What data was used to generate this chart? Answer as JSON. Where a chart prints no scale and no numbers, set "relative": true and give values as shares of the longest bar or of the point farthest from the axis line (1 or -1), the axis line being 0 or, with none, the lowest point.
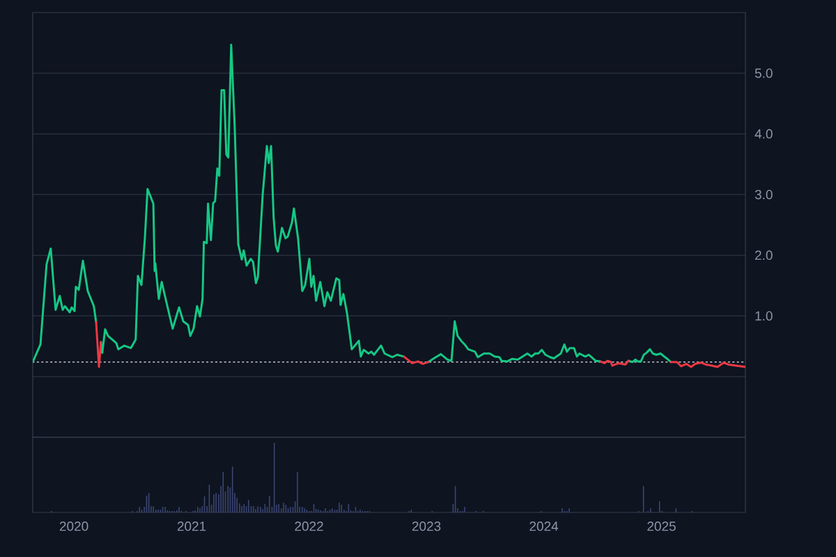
{
  "chart_data": [
    {
      "type": "line",
      "tick_labels": "y",
      "x": [
        "2019-08-26",
        "2019-09-19",
        "2019-10-08",
        "2019-10-21",
        "2019-11-05",
        "2019-11-18",
        "2019-11-27",
        "2019-12-04",
        "2019-12-19",
        "2019-12-25",
        "2020-01-03",
        "2020-01-07",
        "2020-01-16",
        "2020-01-29",
        "2020-02-13",
        "2020-03-03",
        "2020-03-10",
        "2020-03-19",
        "2020-03-25",
        "2020-03-29",
        "2020-04-07",
        "2020-04-16",
        "2020-05-12",
        "2020-05-18",
        "2020-06-05",
        "2020-06-26",
        "2020-07-11",
        "2020-07-18",
        "2020-07-29",
        "2020-08-09",
        "2020-08-17",
        "2020-09-04",
        "2020-09-08",
        "2020-09-10",
        "2020-09-21",
        "2020-09-30",
        "2020-10-10",
        "2020-11-03",
        "2020-11-23",
        "2020-12-06",
        "2020-12-21",
        "2020-12-28",
        "2021-01-07",
        "2021-01-18",
        "2021-01-27",
        "2021-02-04",
        "2021-02-08",
        "2021-02-17",
        "2021-02-21",
        "2021-03-02",
        "2021-03-09",
        "2021-03-15",
        "2021-03-22",
        "2021-03-28",
        "2021-04-04",
        "2021-04-12",
        "2021-04-19",
        "2021-04-25",
        "2021-05-04",
        "2021-05-15",
        "2021-05-26",
        "2021-06-06",
        "2021-06-12",
        "2021-06-21",
        "2021-07-04",
        "2021-07-11",
        "2021-07-20",
        "2021-07-26",
        "2021-08-10",
        "2021-08-23",
        "2021-08-29",
        "2021-09-05",
        "2021-09-13",
        "2021-09-20",
        "2021-09-26",
        "2021-10-09",
        "2021-10-20",
        "2021-10-27",
        "2021-11-09",
        "2021-11-15",
        "2021-11-28",
        "2021-12-11",
        "2021-12-20",
        "2022-01-02",
        "2022-01-08",
        "2022-01-15",
        "2022-01-23",
        "2022-02-05",
        "2022-02-18",
        "2022-02-27",
        "2022-03-10",
        "2022-03-27",
        "2022-04-05",
        "2022-04-09",
        "2022-04-18",
        "2022-04-29",
        "2022-05-14",
        "2022-06-05",
        "2022-06-11",
        "2022-06-20",
        "2022-07-05",
        "2022-07-14",
        "2022-07-22",
        "2022-08-13",
        "2022-08-24",
        "2022-09-17",
        "2022-10-02",
        "2022-10-23",
        "2022-11-18",
        "2022-12-06",
        "2022-12-21",
        "2023-01-07",
        "2023-01-24",
        "2023-02-15",
        "2023-03-07",
        "2023-03-20",
        "2023-03-30",
        "2023-04-08",
        "2023-04-19",
        "2023-04-30",
        "2023-05-11",
        "2023-06-01",
        "2023-06-10",
        "2023-06-29",
        "2023-07-17",
        "2023-08-01",
        "2023-08-16",
        "2023-08-23",
        "2023-09-09",
        "2023-09-24",
        "2023-10-12",
        "2023-11-11",
        "2023-11-24",
        "2023-12-05",
        "2023-12-15",
        "2023-12-26",
        "2024-01-06",
        "2024-01-21",
        "2024-02-01",
        "2024-02-23",
        "2024-03-05",
        "2024-03-13",
        "2024-03-22",
        "2024-04-04",
        "2024-04-13",
        "2024-04-21",
        "2024-05-09",
        "2024-05-20",
        "2024-06-10",
        "2024-06-25",
        "2024-07-08",
        "2024-07-17",
        "2024-07-28",
        "2024-08-01",
        "2024-08-21",
        "2024-09-11",
        "2024-09-20",
        "2024-10-03",
        "2024-10-12",
        "2024-10-18",
        "2024-10-29",
        "2024-11-07",
        "2024-11-15",
        "2024-11-26",
        "2024-12-05",
        "2024-12-16",
        "2024-12-29",
        "2025-01-17",
        "2025-01-30"
      ],
      "series": [
        {
          "color": "#16c784",
          "values": [
            0.24,
            0.53,
            1.85,
            2.11,
            1.1,
            1.33,
            1.1,
            1.16,
            1.06,
            1.14,
            1.08,
            1.48,
            1.43,
            1.91,
            1.41,
            1.16,
            0.9,
            null,
            0.57,
            0.39,
            0.78,
            0.67,
            0.55,
            0.45,
            0.51,
            0.47,
            0.61,
            1.66,
            1.51,
            2.31,
            3.09,
            2.85,
            1.74,
            1.87,
            1.28,
            1.56,
            1.33,
            0.79,
            1.14,
            0.91,
            0.85,
            0.67,
            0.79,
            1.16,
            0.99,
            1.28,
            2.22,
            2.2,
            2.85,
            2.25,
            2.86,
            2.89,
            3.43,
            3.31,
            4.72,
            4.72,
            3.66,
            3.61,
            5.47,
            4.11,
            2.18,
            1.93,
            2.08,
            1.83,
            1.94,
            1.89,
            1.54,
            1.64,
            3.0,
            3.8,
            3.52,
            3.8,
            2.62,
            2.16,
            2.06,
            2.45,
            2.28,
            2.31,
            2.54,
            2.77,
            2.28,
            1.41,
            1.51,
            1.94,
            1.48,
            1.66,
            1.25,
            1.56,
            1.16,
            1.39,
            1.25,
            1.62,
            1.59,
            1.18,
            1.36,
            1.05,
            0.45,
            0.59,
            0.33,
            0.44,
            0.38,
            0.41,
            0.36,
            0.51,
            0.38,
            0.32,
            0.36,
            0.33,
            null,
            null,
            null,
            0.24,
            0.3,
            0.37,
            0.28,
            0.26,
            0.91,
            0.67,
            0.59,
            0.53,
            0.45,
            0.41,
            0.32,
            0.38,
            0.38,
            0.33,
            0.32,
            0.26,
            0.25,
            0.29,
            0.28,
            0.38,
            0.33,
            0.38,
            0.38,
            0.44,
            0.36,
            0.32,
            0.3,
            0.38,
            0.53,
            0.41,
            0.47,
            0.47,
            0.33,
            0.38,
            0.33,
            0.36,
            0.26,
            0.25,
            null,
            null,
            null,
            null,
            null,
            null,
            0.26,
            0.24,
            0.28,
            0.25,
            0.25,
            0.36,
            0.39,
            0.45,
            0.38,
            0.36,
            0.38,
            0.3,
            0.24
          ]
        },
        {
          "color": "#ea3943",
          "x": [
            "2020-03-10",
            "2020-03-19",
            "2020-03-25"
          ],
          "values": [
            0.9,
            0.16,
            0.57
          ]
        },
        {
          "color": "#ea3943",
          "x": [
            "2022-10-23",
            "2022-11-18",
            "2022-12-06",
            "2022-12-21",
            "2023-01-07"
          ],
          "values": [
            0.33,
            0.22,
            0.25,
            0.21,
            0.24
          ]
        },
        {
          "color": "#ea3943",
          "x": [
            "2024-06-25",
            "2024-07-08",
            "2024-07-17",
            "2024-07-28",
            "2024-08-01",
            "2024-08-21",
            "2024-09-11",
            "2024-09-20"
          ],
          "values": [
            0.25,
            0.22,
            0.26,
            0.24,
            0.18,
            0.22,
            0.2,
            0.26
          ]
        },
        {
          "color": "#ea3943",
          "x": [
            "2025-01-30",
            "2025-02-18",
            "2025-03-03",
            "2025-03-19",
            "2025-04-03",
            "2025-04-16",
            "2025-05-05",
            "2025-05-18",
            "2025-06-07",
            "2025-06-24",
            "2025-07-14",
            "2025-07-27",
            "2025-08-22",
            "2025-09-19"
          ],
          "values": [
            0.24,
            0.24,
            0.17,
            0.21,
            0.16,
            0.21,
            0.23,
            0.2,
            0.18,
            0.16,
            0.23,
            0.2,
            0.18,
            0.16
          ]
        }
      ],
      "ref_lines": [
        {
          "axis": "y",
          "value": 0.24,
          "color": "#c8ccd4",
          "line_style": "dotted"
        }
      ],
      "xlim": [
        "2019-08-26",
        "2025-09-19"
      ],
      "ylim": [
        -1.0,
        6.0
      ],
      "yticks": [
        {
          "value": 0,
          "label": null
        },
        {
          "value": 1,
          "label": "1.0"
        },
        {
          "value": 2,
          "label": "2.0"
        },
        {
          "value": 3,
          "label": "3.0"
        },
        {
          "value": 4,
          "label": "4.0"
        },
        {
          "value": 5,
          "label": "5.0"
        }
      ],
      "grid": "y"
    },
    {
      "type": "bar",
      "relative": true,
      "color": "#3b4672",
      "x": [
        "2019-10-23",
        "2020-07-01",
        "2020-07-16",
        "2020-07-23",
        "2020-07-30",
        "2020-08-07",
        "2020-08-14",
        "2020-08-21",
        "2020-08-28",
        "2020-09-04",
        "2020-09-12",
        "2020-09-19",
        "2020-09-26",
        "2020-10-03",
        "2020-10-11",
        "2020-10-18",
        "2020-10-25",
        "2020-11-01",
        "2020-11-08",
        "2020-11-16",
        "2020-11-23",
        "2020-11-30",
        "2020-12-15",
        "2021-01-05",
        "2021-01-12",
        "2021-01-20",
        "2021-01-27",
        "2021-02-03",
        "2021-02-10",
        "2021-02-18",
        "2021-02-25",
        "2021-03-04",
        "2021-03-11",
        "2021-03-18",
        "2021-03-26",
        "2021-04-02",
        "2021-04-09",
        "2021-04-16",
        "2021-04-24",
        "2021-05-01",
        "2021-05-08",
        "2021-05-15",
        "2021-05-22",
        "2021-05-30",
        "2021-06-06",
        "2021-06-13",
        "2021-06-20",
        "2021-06-27",
        "2021-07-05",
        "2021-07-12",
        "2021-07-19",
        "2021-07-26",
        "2021-08-03",
        "2021-08-10",
        "2021-08-17",
        "2021-08-24",
        "2021-08-31",
        "2021-09-08",
        "2021-09-15",
        "2021-09-22",
        "2021-09-29",
        "2021-10-07",
        "2021-10-14",
        "2021-10-21",
        "2021-10-28",
        "2021-11-04",
        "2021-11-12",
        "2021-11-19",
        "2021-11-26",
        "2021-12-03",
        "2021-12-11",
        "2021-12-18",
        "2021-12-25",
        "2022-01-01",
        "2022-01-08",
        "2022-01-16",
        "2022-01-23",
        "2022-01-30",
        "2022-02-06",
        "2022-02-14",
        "2022-02-21",
        "2022-02-28",
        "2022-03-07",
        "2022-03-14",
        "2022-03-22",
        "2022-03-29",
        "2022-04-05",
        "2022-04-12",
        "2022-04-20",
        "2022-04-27",
        "2022-05-04",
        "2022-05-11",
        "2022-05-18",
        "2022-05-26",
        "2022-06-02",
        "2022-06-09",
        "2022-06-16",
        "2022-06-24",
        "2022-07-01",
        "2022-07-08",
        "2022-11-08",
        "2022-11-15",
        "2023-01-19",
        "2023-03-25",
        "2023-04-01",
        "2023-04-08",
        "2023-04-16",
        "2023-04-23",
        "2023-04-30",
        "2023-06-05",
        "2023-06-27",
        "2023-12-24",
        "2024-02-27",
        "2024-03-05",
        "2024-03-13",
        "2024-03-20",
        "2024-10-22",
        "2024-11-06",
        "2024-11-20",
        "2024-11-28",
        "2024-12-26",
        "2025-01-03",
        "2025-02-15",
        "2025-04-06"
      ],
      "values": [
        0.02,
        0.02,
        0.02,
        0.08,
        0.04,
        0.08,
        0.24,
        0.28,
        0.09,
        0.09,
        0.04,
        0.04,
        0.04,
        0.08,
        0.08,
        0.03,
        0.02,
        0.02,
        0.02,
        0.03,
        0.08,
        0.02,
        0.02,
        0.02,
        0.03,
        0.08,
        0.06,
        0.09,
        0.23,
        0.09,
        0.4,
        0.11,
        0.26,
        0.28,
        0.26,
        0.38,
        0.58,
        0.3,
        0.38,
        0.36,
        0.66,
        0.28,
        0.21,
        0.13,
        0.09,
        0.12,
        0.09,
        0.18,
        0.09,
        0.09,
        0.05,
        0.09,
        0.08,
        0.05,
        0.12,
        0.08,
        0.24,
        0.08,
        1.0,
        0.11,
        0.12,
        0.06,
        0.14,
        0.11,
        0.06,
        0.08,
        0.08,
        0.16,
        0.58,
        0.08,
        0.08,
        0.06,
        0.04,
        0.02,
        0.02,
        0.12,
        0.05,
        0.04,
        0.03,
        0.02,
        0.06,
        0.02,
        0.04,
        0.06,
        0.04,
        0.04,
        0.14,
        0.11,
        0.04,
        0.02,
        0.12,
        0.03,
        0.02,
        0.08,
        0.02,
        0.04,
        0.02,
        0.02,
        0.02,
        0.02,
        0.02,
        0.04,
        0.02,
        0.12,
        0.38,
        0.06,
        0.02,
        0.02,
        0.08,
        0.02,
        0.02,
        0.02,
        0.06,
        0.02,
        0.02,
        0.06,
        0.02,
        0.38,
        0.02,
        0.06,
        0.16,
        0.02,
        0.06,
        0.02
      ],
      "xlim": [
        "2019-08-26",
        "2025-09-19"
      ],
      "xticks": [
        {
          "value": "2020-01-01",
          "label": "2020"
        },
        {
          "value": "2021-01-01",
          "label": "2021"
        },
        {
          "value": "2022-01-01",
          "label": "2022"
        },
        {
          "value": "2023-01-01",
          "label": "2023"
        },
        {
          "value": "2024-01-01",
          "label": "2024"
        },
        {
          "value": "2025-01-01",
          "label": "2025"
        }
      ]
    }
  ]
}
